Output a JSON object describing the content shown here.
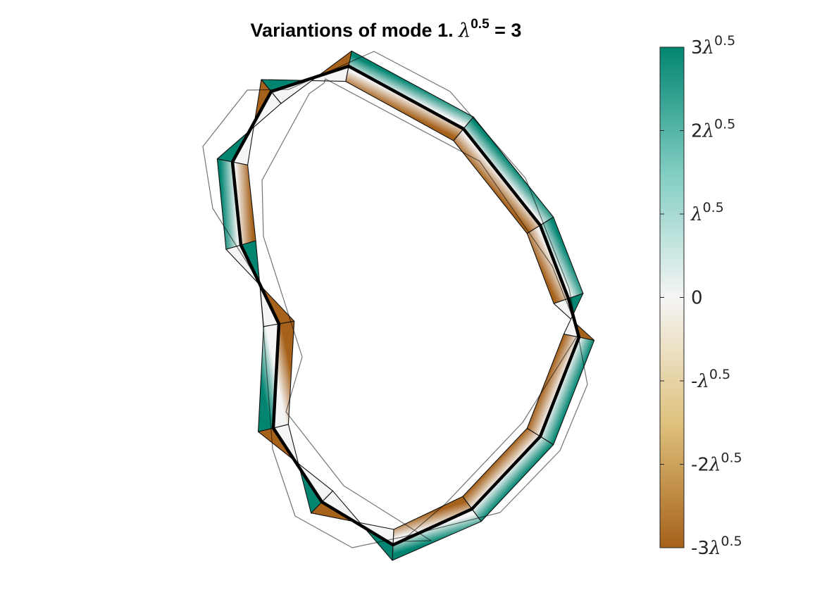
{
  "chart_data": {
    "type": "shape-mode-variation",
    "title": {
      "prefix": "Variantions of mode 1. ",
      "symbol": "λ",
      "exponent": "0.5",
      "suffix": " = 3"
    },
    "mode": 1,
    "sd_multiplier": 3,
    "colorbar": {
      "limits": [
        -3,
        3
      ],
      "colors": {
        "neg": "#a6611a",
        "neg_mid": "#dfc27d",
        "zero": "#f5f5f5",
        "pos_mid": "#80cdc1",
        "pos": "#018571"
      },
      "ticks": [
        {
          "value": 3,
          "coef": "3",
          "symbol": "λ",
          "exp": "0.5"
        },
        {
          "value": 2,
          "coef": "2",
          "symbol": "λ",
          "exp": "0.5"
        },
        {
          "value": 1,
          "coef": "",
          "symbol": "λ",
          "exp": "0.5"
        },
        {
          "value": 0,
          "coef": "0",
          "symbol": "",
          "exp": ""
        },
        {
          "value": -1,
          "coef": "-",
          "symbol": "λ",
          "exp": "0.5"
        },
        {
          "value": -2,
          "coef": "-2",
          "symbol": "λ",
          "exp": "0.5"
        },
        {
          "value": -3,
          "coef": "-3",
          "symbol": "λ",
          "exp": "0.5"
        }
      ]
    },
    "outline_units": "data",
    "mean_shape": [
      [
        495,
        94
      ],
      [
        658,
        183
      ],
      [
        767,
        320
      ],
      [
        807,
        424
      ],
      [
        822,
        479
      ],
      [
        767,
        620
      ],
      [
        670,
        723
      ],
      [
        558,
        774
      ],
      [
        457,
        713
      ],
      [
        388,
        608
      ],
      [
        396,
        460
      ],
      [
        342,
        348
      ],
      [
        330,
        230
      ],
      [
        385,
        130
      ]
    ],
    "variation_sign": [
      -1,
      -1,
      -1,
      -1,
      1,
      1,
      1,
      1,
      -1,
      1,
      1,
      -1,
      -1,
      1
    ],
    "plus_shape": [
      [
        531,
        73
      ],
      [
        639,
        130
      ],
      [
        746,
        253
      ],
      [
        808,
        410
      ],
      [
        834,
        546
      ],
      [
        795,
        640
      ],
      [
        710,
        728
      ],
      [
        575,
        762
      ],
      [
        500,
        778
      ],
      [
        419,
        733
      ],
      [
        387,
        638
      ],
      [
        369,
        402
      ],
      [
        302,
        296
      ],
      [
        288,
        208
      ],
      [
        351,
        128
      ],
      [
        410,
        127
      ]
    ],
    "minus_shape": [
      [
        462,
        112
      ],
      [
        681,
        229
      ],
      [
        784,
        378
      ],
      [
        822,
        473
      ],
      [
        742,
        600
      ],
      [
        632,
        716
      ],
      [
        570,
        769
      ],
      [
        612,
        768
      ],
      [
        488,
        690
      ],
      [
        406,
        585
      ],
      [
        429,
        507
      ],
      [
        374,
        336
      ],
      [
        372,
        256
      ],
      [
        439,
        133
      ],
      [
        460,
        118
      ]
    ]
  }
}
